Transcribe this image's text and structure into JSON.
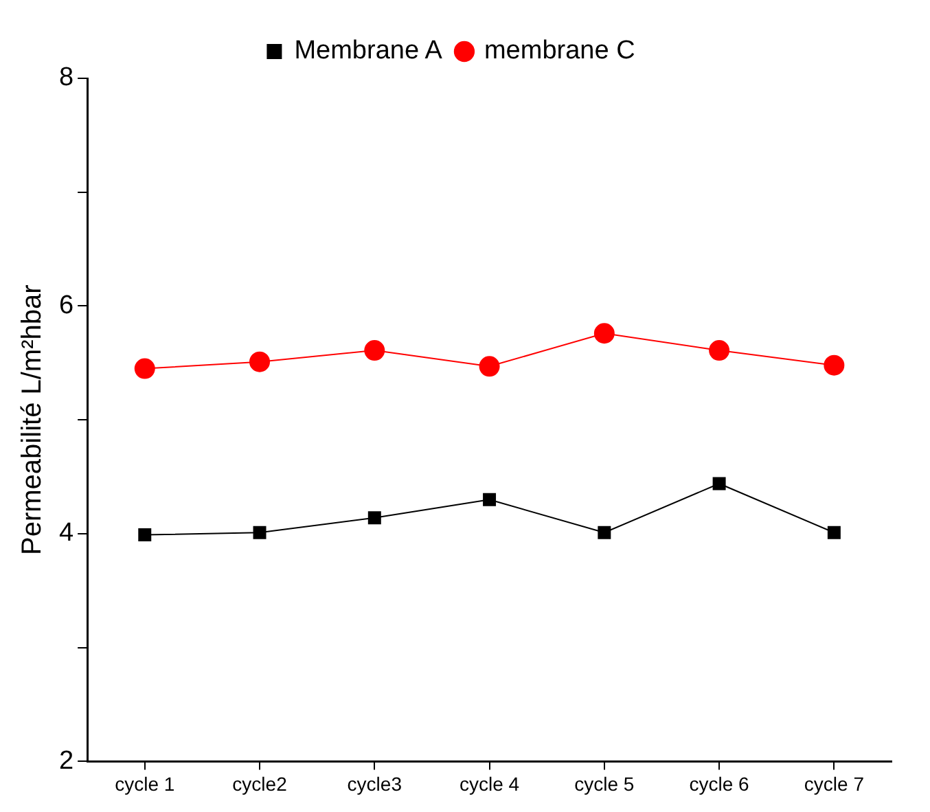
{
  "chart_data": {
    "type": "line",
    "ylabel": "Permeabilité L/m²hbar",
    "categories": [
      "cycle 1",
      "cycle2",
      "cycle3",
      "cycle 4",
      "cycle 5",
      "cycle 6",
      "cycle 7"
    ],
    "series": [
      {
        "name": "Membrane A",
        "color": "#000000",
        "marker": "square",
        "values": [
          3.99,
          4.01,
          4.14,
          4.3,
          4.01,
          4.44,
          4.01
        ]
      },
      {
        "name": "membrane C",
        "color": "#ff0000",
        "marker": "circle",
        "values": [
          5.45,
          5.51,
          5.61,
          5.47,
          5.76,
          5.61,
          5.48
        ]
      }
    ],
    "ylim": [
      2,
      8
    ],
    "yticks": [
      2,
      {
        "value": 3,
        "label": null
      },
      4,
      {
        "value": 5,
        "label": null
      },
      6,
      {
        "value": 7,
        "label": null
      },
      8
    ],
    "grid": false,
    "legend": "top"
  }
}
